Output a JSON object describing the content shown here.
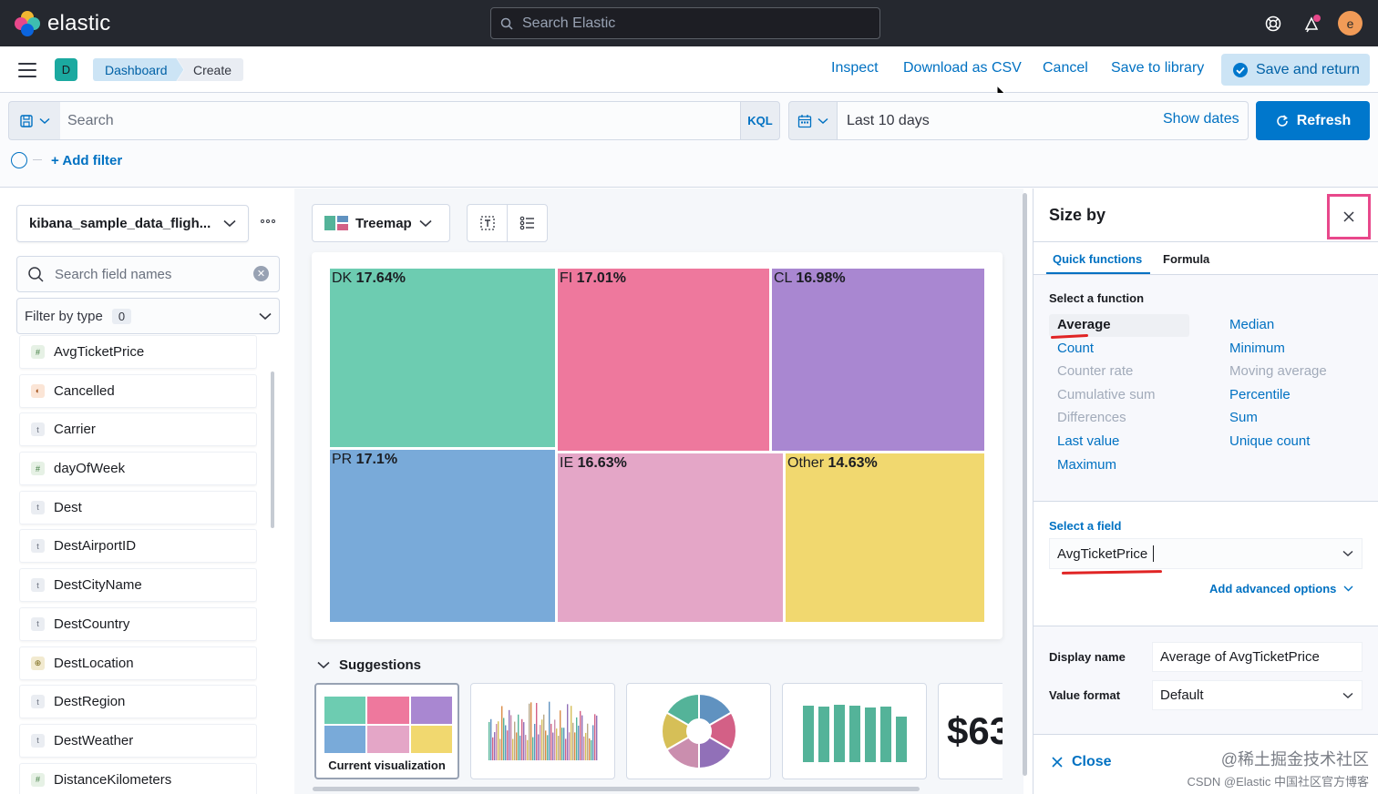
{
  "header": {
    "logo_text": "elastic",
    "search_placeholder": "Search Elastic",
    "avatar_letter": "e"
  },
  "nav": {
    "space_letter": "D",
    "breadcrumbs": [
      "Dashboard",
      "Create"
    ],
    "links": {
      "inspect": "Inspect",
      "download": "Download as CSV",
      "cancel": "Cancel",
      "save_library": "Save to library"
    },
    "save_return": "Save and return"
  },
  "query": {
    "search_placeholder": "Search",
    "language": "KQL",
    "date_range": "Last 10 days",
    "show_dates": "Show dates",
    "refresh": "Refresh",
    "add_filter": "+ Add filter"
  },
  "left": {
    "index_pattern": "kibana_sample_data_fligh...",
    "field_search_placeholder": "Search field names",
    "filter_by_type": "Filter by type",
    "filter_count": "0",
    "fields": [
      {
        "name": "AvgTicketPrice",
        "type": "number",
        "token": "#"
      },
      {
        "name": "Cancelled",
        "type": "boolean",
        "token": "◐"
      },
      {
        "name": "Carrier",
        "type": "string",
        "token": "t"
      },
      {
        "name": "dayOfWeek",
        "type": "number",
        "token": "#"
      },
      {
        "name": "Dest",
        "type": "string",
        "token": "t"
      },
      {
        "name": "DestAirportID",
        "type": "string",
        "token": "t"
      },
      {
        "name": "DestCityName",
        "type": "string",
        "token": "t"
      },
      {
        "name": "DestCountry",
        "type": "string",
        "token": "t"
      },
      {
        "name": "DestLocation",
        "type": "geo",
        "token": "⊕"
      },
      {
        "name": "DestRegion",
        "type": "string",
        "token": "t"
      },
      {
        "name": "DestWeather",
        "type": "string",
        "token": "t"
      },
      {
        "name": "DistanceKilometers",
        "type": "number",
        "token": "#"
      }
    ]
  },
  "workspace": {
    "viz_type": "Treemap",
    "suggestions_title": "Suggestions",
    "current_viz_label": "Current visualization",
    "metric_suggestion_text": "$63"
  },
  "chart_data": {
    "type": "treemap",
    "tiles": [
      {
        "name": "DK",
        "percent": "17.64%",
        "color": "#6dccb1"
      },
      {
        "name": "FI",
        "percent": "17.01%",
        "color": "#ee789d"
      },
      {
        "name": "CL",
        "percent": "16.98%",
        "color": "#a987d1"
      },
      {
        "name": "PR",
        "percent": "17.1%",
        "color": "#79aad9"
      },
      {
        "name": "IE",
        "percent": "16.63%",
        "color": "#e4a6c7"
      },
      {
        "name": "Other",
        "percent": "14.63%",
        "color": "#f1d86f"
      }
    ]
  },
  "flyout": {
    "title": "Size by",
    "tabs": [
      "Quick functions",
      "Formula"
    ],
    "select_function_label": "Select a function",
    "functions_left": [
      {
        "label": "Average",
        "state": "selected"
      },
      {
        "label": "Count",
        "state": "enabled"
      },
      {
        "label": "Counter rate",
        "state": "disabled"
      },
      {
        "label": "Cumulative sum",
        "state": "disabled"
      },
      {
        "label": "Differences",
        "state": "disabled"
      },
      {
        "label": "Last value",
        "state": "enabled"
      },
      {
        "label": "Maximum",
        "state": "enabled"
      }
    ],
    "functions_right": [
      {
        "label": "Median",
        "state": "enabled"
      },
      {
        "label": "Minimum",
        "state": "enabled"
      },
      {
        "label": "Moving average",
        "state": "disabled"
      },
      {
        "label": "Percentile",
        "state": "enabled"
      },
      {
        "label": "Sum",
        "state": "enabled"
      },
      {
        "label": "Unique count",
        "state": "enabled"
      }
    ],
    "select_field_label": "Select a field",
    "field_value": "AvgTicketPrice",
    "advanced_options": "Add advanced options",
    "display_name_label": "Display name",
    "display_name_value": "Average of AvgTicketPrice",
    "value_format_label": "Value format",
    "value_format_value": "Default",
    "close": "Close"
  },
  "watermark": {
    "line1": "@稀土掘金技术社区",
    "line2": "CSDN @Elastic 中国社区官方博客"
  },
  "colors": {
    "accent": "#0077cc",
    "link": "#0071c2",
    "highlight_box": "#e8488b",
    "annotation": "#e02424"
  }
}
